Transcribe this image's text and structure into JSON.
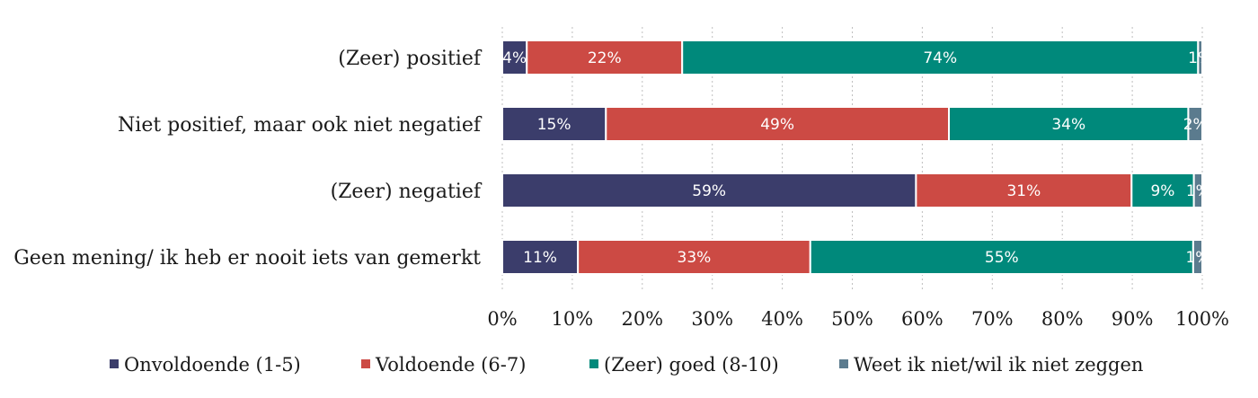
{
  "chart_data": {
    "type": "bar",
    "orientation": "horizontal",
    "stacked": true,
    "title": "",
    "xlabel": "",
    "ylabel": "",
    "xlim": [
      0,
      100
    ],
    "x_ticks": [
      "0%",
      "10%",
      "20%",
      "30%",
      "40%",
      "50%",
      "60%",
      "70%",
      "80%",
      "90%",
      "100%"
    ],
    "grid": true,
    "legend_position": "bottom",
    "categories": [
      "(Zeer) positief",
      "Niet positief, maar ook niet negatief",
      "(Zeer) negatief",
      "Geen mening/ ik heb er nooit iets van gemerkt"
    ],
    "series": [
      {
        "name": "Onvoldoende (1-5)",
        "color": "#3b3d6b",
        "values": [
          3.5,
          14.8,
          59.1,
          10.8
        ],
        "labels": [
          "4%",
          "15%",
          "59%",
          "11%"
        ]
      },
      {
        "name": "Voldoende (6-7)",
        "color": "#cc4a44",
        "values": [
          22.2,
          49.0,
          30.8,
          33.2
        ],
        "labels": [
          "22%",
          "49%",
          "31%",
          "33%"
        ]
      },
      {
        "name": "(Zeer) goed (8-10)",
        "color": "#00897b",
        "values": [
          73.7,
          34.2,
          8.9,
          54.7
        ],
        "labels": [
          "74%",
          "34%",
          "9%",
          "55%"
        ]
      },
      {
        "name": "Weet ik niet/wil ik niet zeggen",
        "color": "#5b7b8e",
        "values": [
          0.6,
          2.0,
          1.2,
          1.3
        ],
        "labels": [
          "1%",
          "2%",
          "1%",
          "1%"
        ]
      }
    ]
  }
}
